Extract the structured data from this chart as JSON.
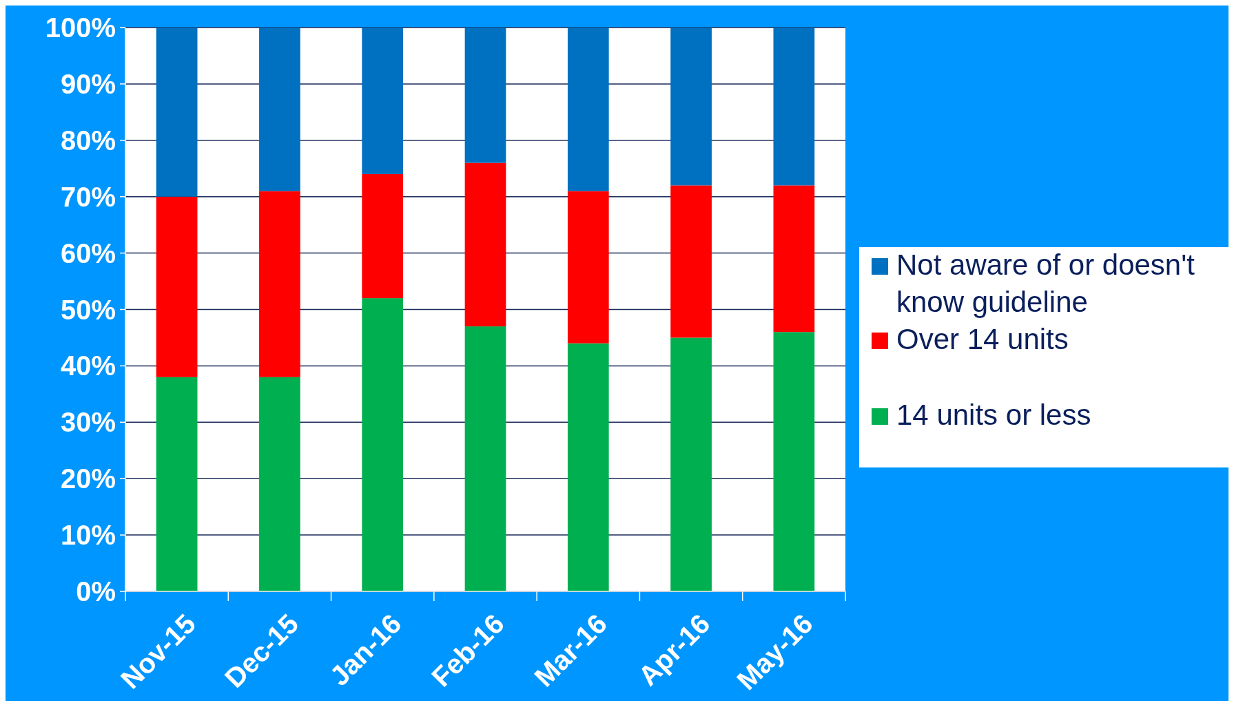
{
  "chart_data": {
    "type": "bar",
    "stacked": true,
    "categories": [
      "Nov-15",
      "Dec-15",
      "Jan-16",
      "Feb-16",
      "Mar-16",
      "Apr-16",
      "May-16"
    ],
    "series": [
      {
        "name": "14 units or less",
        "color": "#00b050",
        "values": [
          38,
          38,
          52,
          47,
          44,
          45,
          46
        ]
      },
      {
        "name": "Over 14 units",
        "color": "#ff0000",
        "values": [
          32,
          33,
          22,
          29,
          27,
          27,
          26
        ]
      },
      {
        "name": "Not aware of or doesn't know guideline",
        "color": "#0070c0",
        "values": [
          30,
          29,
          26,
          24,
          29,
          28,
          28
        ]
      }
    ],
    "ylim": [
      0,
      100
    ],
    "yticks": [
      {
        "value": 0,
        "label": "0%"
      },
      {
        "value": 10,
        "label": "10%"
      },
      {
        "value": 20,
        "label": "20%"
      },
      {
        "value": 30,
        "label": "30%"
      },
      {
        "value": 40,
        "label": "40%"
      },
      {
        "value": 50,
        "label": "50%"
      },
      {
        "value": 60,
        "label": "60%"
      },
      {
        "value": 70,
        "label": "70%"
      },
      {
        "value": 80,
        "label": "80%"
      },
      {
        "value": 90,
        "label": "90%"
      },
      {
        "value": 100,
        "label": "100%"
      }
    ],
    "grid": "y",
    "legend": "right"
  }
}
